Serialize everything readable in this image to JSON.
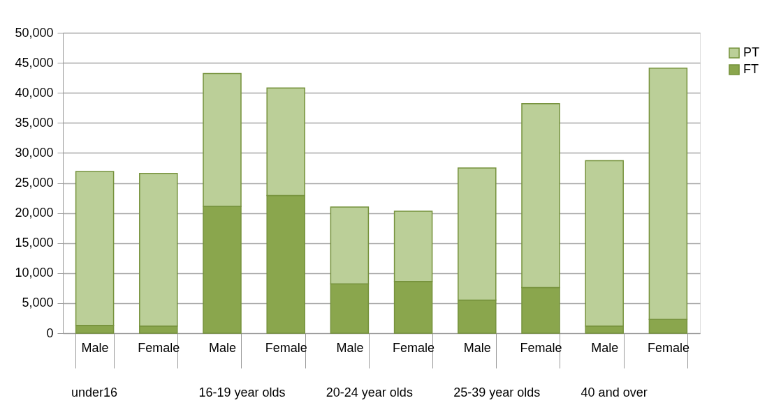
{
  "chart_data": {
    "type": "bar",
    "stacked": true,
    "categories": [
      "Male",
      "Female",
      "Male",
      "Female",
      "Male",
      "Female",
      "Male",
      "Female",
      "Male",
      "Female"
    ],
    "series": [
      {
        "name": "FT",
        "color": "#8aa64d",
        "values": [
          1300,
          1200,
          21100,
          22900,
          8200,
          8600,
          5500,
          7600,
          1200,
          2300
        ]
      },
      {
        "name": "PT",
        "color": "#bbcf98",
        "values": [
          25600,
          25400,
          22100,
          17900,
          12800,
          11700,
          22000,
          30600,
          27500,
          41800
        ]
      }
    ],
    "annotations": [
      "under16",
      "16-19 year olds",
      "20-24 year olds",
      "25-39 year olds",
      "40 and over"
    ],
    "ylim": [
      0,
      50000
    ],
    "yticks": [
      0,
      {
        "value": 5000,
        "label": "5,000"
      },
      {
        "value": 10000,
        "label": "10,000"
      },
      {
        "value": 15000,
        "label": "15,000"
      },
      {
        "value": 20000,
        "label": "20,000"
      },
      {
        "value": 25000,
        "label": "25,000"
      },
      {
        "value": 30000,
        "label": "30,000"
      },
      {
        "value": 35000,
        "label": "35,000"
      },
      {
        "value": 40000,
        "label": "40,000"
      },
      {
        "value": 45000,
        "label": "45,000"
      },
      {
        "value": 50000,
        "label": "50,000"
      }
    ],
    "grid": "y",
    "legend": "right"
  }
}
